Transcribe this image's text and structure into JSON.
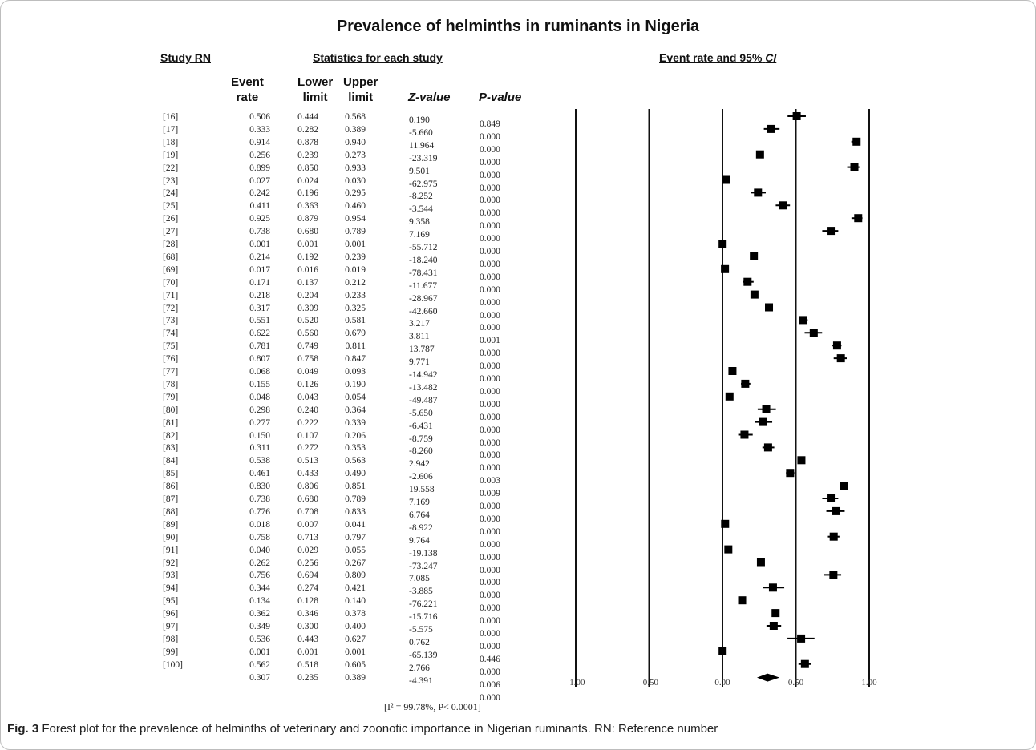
{
  "chart_data": {
    "type": "forest",
    "title": "Prevalence of helminths in ruminants in Nigeria",
    "headers": {
      "study": "Study RN",
      "stats": "Statistics for each study",
      "plot": "Event rate and 95%",
      "plot_ci": "CI",
      "event_rate": [
        "Event",
        "rate"
      ],
      "lower": [
        "Lower",
        "limit"
      ],
      "upper": [
        "Upper",
        "limit"
      ],
      "z": "Z-value",
      "p": "P-value"
    },
    "studies": [
      {
        "rn": "[16]",
        "rate": "0.506",
        "lower": "0.444",
        "upper": "0.568",
        "z": "0.190",
        "p": "0.849"
      },
      {
        "rn": "[17]",
        "rate": "0.333",
        "lower": "0.282",
        "upper": "0.389",
        "z": "-5.660",
        "p": "0.000"
      },
      {
        "rn": "[18]",
        "rate": "0.914",
        "lower": "0.878",
        "upper": "0.940",
        "z": "11.964",
        "p": "0.000"
      },
      {
        "rn": "[19]",
        "rate": "0.256",
        "lower": "0.239",
        "upper": "0.273",
        "z": "-23.319",
        "p": "0.000"
      },
      {
        "rn": "[22]",
        "rate": "0.899",
        "lower": "0.850",
        "upper": "0.933",
        "z": "9.501",
        "p": "0.000"
      },
      {
        "rn": "[23]",
        "rate": "0.027",
        "lower": "0.024",
        "upper": "0.030",
        "z": "-62.975",
        "p": "0.000"
      },
      {
        "rn": "[24]",
        "rate": "0.242",
        "lower": "0.196",
        "upper": "0.295",
        "z": "-8.252",
        "p": "0.000"
      },
      {
        "rn": "[25]",
        "rate": "0.411",
        "lower": "0.363",
        "upper": "0.460",
        "z": "-3.544",
        "p": "0.000"
      },
      {
        "rn": "[26]",
        "rate": "0.925",
        "lower": "0.879",
        "upper": "0.954",
        "z": "9.358",
        "p": "0.000"
      },
      {
        "rn": "[27]",
        "rate": "0.738",
        "lower": "0.680",
        "upper": "0.789",
        "z": "7.169",
        "p": "0.000"
      },
      {
        "rn": "[28]",
        "rate": "0.001",
        "lower": "0.001",
        "upper": "0.001",
        "z": "-55.712",
        "p": "0.000"
      },
      {
        "rn": "[68]",
        "rate": "0.214",
        "lower": "0.192",
        "upper": "0.239",
        "z": "-18.240",
        "p": "0.000"
      },
      {
        "rn": "[69]",
        "rate": "0.017",
        "lower": "0.016",
        "upper": "0.019",
        "z": "-78.431",
        "p": "0.000"
      },
      {
        "rn": "[70]",
        "rate": "0.171",
        "lower": "0.137",
        "upper": "0.212",
        "z": "-11.677",
        "p": "0.000"
      },
      {
        "rn": "[71]",
        "rate": "0.218",
        "lower": "0.204",
        "upper": "0.233",
        "z": "-28.967",
        "p": "0.000"
      },
      {
        "rn": "[72]",
        "rate": "0.317",
        "lower": "0.309",
        "upper": "0.325",
        "z": "-42.660",
        "p": "0.000"
      },
      {
        "rn": "[73]",
        "rate": "0.551",
        "lower": "0.520",
        "upper": "0.581",
        "z": "3.217",
        "p": "0.000"
      },
      {
        "rn": "[74]",
        "rate": "0.622",
        "lower": "0.560",
        "upper": "0.679",
        "z": "3.811",
        "p": "0.001"
      },
      {
        "rn": "[75]",
        "rate": "0.781",
        "lower": "0.749",
        "upper": "0.811",
        "z": "13.787",
        "p": "0.000"
      },
      {
        "rn": "[76]",
        "rate": "0.807",
        "lower": "0.758",
        "upper": "0.847",
        "z": "9.771",
        "p": "0.000"
      },
      {
        "rn": "[77]",
        "rate": "0.068",
        "lower": "0.049",
        "upper": "0.093",
        "z": "-14.942",
        "p": "0.000"
      },
      {
        "rn": "[78]",
        "rate": "0.155",
        "lower": "0.126",
        "upper": "0.190",
        "z": "-13.482",
        "p": "0.000"
      },
      {
        "rn": "[79]",
        "rate": "0.048",
        "lower": "0.043",
        "upper": "0.054",
        "z": "-49.487",
        "p": "0.000"
      },
      {
        "rn": "[80]",
        "rate": "0.298",
        "lower": "0.240",
        "upper": "0.364",
        "z": "-5.650",
        "p": "0.000"
      },
      {
        "rn": "[81]",
        "rate": "0.277",
        "lower": "0.222",
        "upper": "0.339",
        "z": "-6.431",
        "p": "0.000"
      },
      {
        "rn": "[82]",
        "rate": "0.150",
        "lower": "0.107",
        "upper": "0.206",
        "z": "-8.759",
        "p": "0.000"
      },
      {
        "rn": "[83]",
        "rate": "0.311",
        "lower": "0.272",
        "upper": "0.353",
        "z": "-8.260",
        "p": "0.000"
      },
      {
        "rn": "[84]",
        "rate": "0.538",
        "lower": "0.513",
        "upper": "0.563",
        "z": "2.942",
        "p": "0.000"
      },
      {
        "rn": "[85]",
        "rate": "0.461",
        "lower": "0.433",
        "upper": "0.490",
        "z": "-2.606",
        "p": "0.003"
      },
      {
        "rn": "[86]",
        "rate": "0.830",
        "lower": "0.806",
        "upper": "0.851",
        "z": "19.558",
        "p": "0.009"
      },
      {
        "rn": "[87]",
        "rate": "0.738",
        "lower": "0.680",
        "upper": "0.789",
        "z": "7.169",
        "p": "0.000"
      },
      {
        "rn": "[88]",
        "rate": "0.776",
        "lower": "0.708",
        "upper": "0.833",
        "z": "6.764",
        "p": "0.000"
      },
      {
        "rn": "[89]",
        "rate": "0.018",
        "lower": "0.007",
        "upper": "0.041",
        "z": "-8.922",
        "p": "0.000"
      },
      {
        "rn": "[90]",
        "rate": "0.758",
        "lower": "0.713",
        "upper": "0.797",
        "z": "9.764",
        "p": "0.000"
      },
      {
        "rn": "[91]",
        "rate": "0.040",
        "lower": "0.029",
        "upper": "0.055",
        "z": "-19.138",
        "p": "0.000"
      },
      {
        "rn": "[92]",
        "rate": "0.262",
        "lower": "0.256",
        "upper": "0.267",
        "z": "-73.247",
        "p": "0.000"
      },
      {
        "rn": "[93]",
        "rate": "0.756",
        "lower": "0.694",
        "upper": "0.809",
        "z": "7.085",
        "p": "0.000"
      },
      {
        "rn": "[94]",
        "rate": "0.344",
        "lower": "0.274",
        "upper": "0.421",
        "z": "-3.885",
        "p": "0.000"
      },
      {
        "rn": "[95]",
        "rate": "0.134",
        "lower": "0.128",
        "upper": "0.140",
        "z": "-76.221",
        "p": "0.000"
      },
      {
        "rn": "[96]",
        "rate": "0.362",
        "lower": "0.346",
        "upper": "0.378",
        "z": "-15.716",
        "p": "0.000"
      },
      {
        "rn": "[97]",
        "rate": "0.349",
        "lower": "0.300",
        "upper": "0.400",
        "z": "-5.575",
        "p": "0.000"
      },
      {
        "rn": "[98]",
        "rate": "0.536",
        "lower": "0.443",
        "upper": "0.627",
        "z": "0.762",
        "p": "0.000"
      },
      {
        "rn": "[99]",
        "rate": "0.001",
        "lower": "0.001",
        "upper": "0.001",
        "z": "-65.139",
        "p": "0.446"
      },
      {
        "rn": "[100]",
        "rate": "0.562",
        "lower": "0.518",
        "upper": "0.605",
        "z": "2.766",
        "p": "0.000"
      }
    ],
    "pooled": {
      "rate": "0.307",
      "lower": "0.235",
      "upper": "0.389",
      "z": "-4.391",
      "p": "0.006"
    },
    "extra_p": "0.000",
    "heterogeneity": "[I² = 99.78%, P< 0.0001]",
    "xticks": [
      "-1.00",
      "-0.50",
      "0.00",
      "0.50",
      "1.00"
    ],
    "xlim": [
      -1.0,
      1.0
    ]
  },
  "caption": {
    "label": "Fig. 3",
    "text": " Forest plot for the prevalence of helminths of veterinary and zoonotic importance in Nigerian ruminants. RN: Reference number"
  }
}
